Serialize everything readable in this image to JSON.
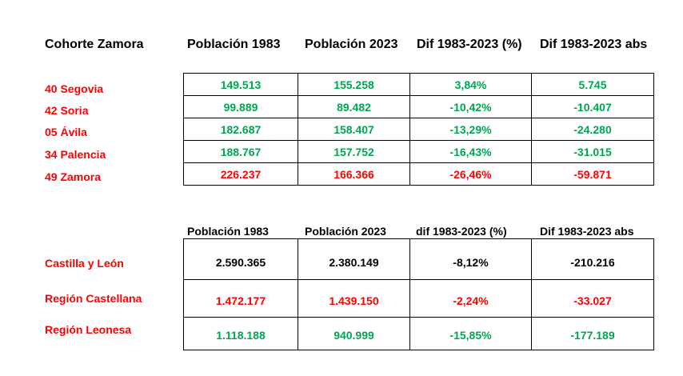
{
  "table1": {
    "corner_label": "Cohorte Zamora",
    "headers": [
      "Población 1983",
      "Población 2023",
      "Dif 1983-2023 (%)",
      "Dif 1983-2023 abs"
    ],
    "rows": [
      {
        "label": "40 Segovia",
        "values": [
          "149.513",
          "155.258",
          "3,84%",
          "5.745"
        ],
        "color": "#00a550"
      },
      {
        "label": "42 Soria",
        "values": [
          "99.889",
          "89.482",
          "-10,42%",
          "-10.407"
        ],
        "color": "#00a550"
      },
      {
        "label": "05 Ávila",
        "values": [
          "182.687",
          "158.407",
          "-13,29%",
          "-24.280"
        ],
        "color": "#00a550"
      },
      {
        "label": "34 Palencia",
        "values": [
          "188.767",
          "157.752",
          "-16,43%",
          "-31.015"
        ],
        "color": "#00a550"
      },
      {
        "label": "49 Zamora",
        "values": [
          "226.237",
          "166.366",
          "-26,46%",
          "-59.871"
        ],
        "color": "#ff0000"
      }
    ]
  },
  "table2": {
    "headers": [
      "Población 1983",
      "Población 2023",
      "dif 1983-2023 (%)",
      "Dif 1983-2023 abs"
    ],
    "rows": [
      {
        "label": "Castilla y León",
        "values": [
          "2.590.365",
          "2.380.149",
          "-8,12%",
          "-210.216"
        ],
        "colors": [
          "#000000",
          "#000000",
          "#000000",
          "#000000"
        ]
      },
      {
        "label": "Región Castellana",
        "values": [
          "1.472.177",
          "1.439.150",
          "-2,24%",
          "-33.027"
        ],
        "colors": [
          "#ff0000",
          "#ff0000",
          "#ff0000",
          "#ff0000"
        ]
      },
      {
        "label": "Región Leonesa",
        "values": [
          "1.118.188",
          "940.999",
          "-15,85%",
          "-177.189"
        ],
        "colors": [
          "#00a550",
          "#00a550",
          "#00a550",
          "#00a550"
        ]
      }
    ]
  },
  "colors": {
    "label_red": "#ff0000",
    "value_green": "#00a550",
    "value_red": "#ff0000",
    "value_black": "#000000"
  }
}
